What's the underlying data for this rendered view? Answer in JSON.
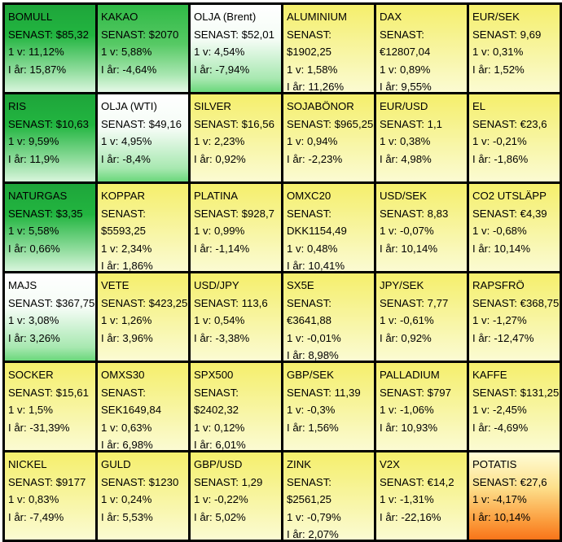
{
  "labels": {
    "senast": "SENAST:",
    "week": "1 v:",
    "year": "I år:"
  },
  "cells": [
    {
      "name": "BOMULL",
      "senast": "$85,32",
      "week": "11,12%",
      "year": "15,87%",
      "bg": "g1"
    },
    {
      "name": "KAKAO",
      "senast": "$2070",
      "week": "5,88%",
      "year": "-4,64%",
      "bg": "g2"
    },
    {
      "name": "OLJA (Brent)",
      "senast": "$52,01",
      "week": "4,54%",
      "year": "-7,94%",
      "bg": "g3"
    },
    {
      "name": "ALUMINIUM",
      "senast": "$1902,25",
      "week": "1,58%",
      "year": "11,26%",
      "bg": "y"
    },
    {
      "name": "DAX",
      "senast": "€12807,04",
      "week": "0,89%",
      "year": "9,55%",
      "bg": "y"
    },
    {
      "name": "EUR/SEK",
      "senast": "9,69",
      "week": "0,31%",
      "year": "1,52%",
      "bg": "y"
    },
    {
      "name": "RIS",
      "senast": "$10,63",
      "week": "9,59%",
      "year": "11,9%",
      "bg": "g1"
    },
    {
      "name": "OLJA (WTI)",
      "senast": "$49,16",
      "week": "4,95%",
      "year": "-8,4%",
      "bg": "g3"
    },
    {
      "name": "SILVER",
      "senast": "$16,56",
      "week": "2,23%",
      "year": "0,92%",
      "bg": "y"
    },
    {
      "name": "SOJABÖNOR",
      "senast": "$965,25",
      "week": "0,94%",
      "year": "-2,23%",
      "bg": "y"
    },
    {
      "name": "EUR/USD",
      "senast": "1,1",
      "week": "0,38%",
      "year": "4,98%",
      "bg": "y"
    },
    {
      "name": "EL",
      "senast": "€23,6",
      "week": "-0,21%",
      "year": "-1,86%",
      "bg": "y"
    },
    {
      "name": "NATURGAS",
      "senast": "$3,35",
      "week": "5,58%",
      "year": "0,66%",
      "bg": "g1"
    },
    {
      "name": "KOPPAR",
      "senast": "$5593,25",
      "week": "2,34%",
      "year": "1,86%",
      "bg": "y"
    },
    {
      "name": "PLATINA",
      "senast": "$928,7",
      "week": "0,99%",
      "year": "-1,14%",
      "bg": "y"
    },
    {
      "name": "OMXC20",
      "senast": "DKK1154,49",
      "week": "0,48%",
      "year": "10,41%",
      "bg": "y"
    },
    {
      "name": "USD/SEK",
      "senast": "8,83",
      "week": "-0,07%",
      "year": "10,14%",
      "bg": "y"
    },
    {
      "name": "CO2 UTSLÄPP",
      "senast": "€4,39",
      "week": "-0,68%",
      "year": "10,14%",
      "bg": "y"
    },
    {
      "name": "MAJS",
      "senast": "$367,75",
      "week": "3,08%",
      "year": "3,26%",
      "bg": "g3"
    },
    {
      "name": "VETE",
      "senast": "$423,25",
      "week": "1,26%",
      "year": "3,96%",
      "bg": "y"
    },
    {
      "name": "USD/JPY",
      "senast": "113,6",
      "week": "0,54%",
      "year": "-3,38%",
      "bg": "y"
    },
    {
      "name": "SX5E",
      "senast": "€3641,88",
      "week": "-0,01%",
      "year": "8,98%",
      "bg": "y"
    },
    {
      "name": "JPY/SEK",
      "senast": "7,77",
      "week": "-0,61%",
      "year": "0,92%",
      "bg": "y"
    },
    {
      "name": "RAPSFRÖ",
      "senast": "€368,75",
      "week": "-1,27%",
      "year": "-12,47%",
      "bg": "y"
    },
    {
      "name": "SOCKER",
      "senast": "$15,61",
      "week": "1,5%",
      "year": "-31,39%",
      "bg": "y"
    },
    {
      "name": "OMXS30",
      "senast": "SEK1649,84",
      "week": "0,63%",
      "year": "6,98%",
      "bg": "y"
    },
    {
      "name": "SPX500",
      "senast": "$2402,32",
      "week": "0,12%",
      "year": "6,01%",
      "bg": "y"
    },
    {
      "name": "GBP/SEK",
      "senast": "11,39",
      "week": "-0,3%",
      "year": "1,56%",
      "bg": "y"
    },
    {
      "name": "PALLADIUM",
      "senast": "$797",
      "week": "-1,06%",
      "year": "10,93%",
      "bg": "y"
    },
    {
      "name": "KAFFE",
      "senast": "$131,25",
      "week": "-2,45%",
      "year": "-4,69%",
      "bg": "y"
    },
    {
      "name": "NICKEL",
      "senast": "$9177",
      "week": "0,83%",
      "year": "-7,49%",
      "bg": "y"
    },
    {
      "name": "GULD",
      "senast": "$1230",
      "week": "0,24%",
      "year": "5,53%",
      "bg": "y"
    },
    {
      "name": "GBP/USD",
      "senast": "1,29",
      "week": "-0,22%",
      "year": "5,02%",
      "bg": "y"
    },
    {
      "name": "ZINK",
      "senast": "$2561,25",
      "week": "-0,79%",
      "year": "2,07%",
      "bg": "y"
    },
    {
      "name": "V2X",
      "senast": "€14,2",
      "week": "-1,31%",
      "year": "-22,16%",
      "bg": "y"
    },
    {
      "name": "POTATIS",
      "senast": "€27,6",
      "week": "-4,17%",
      "year": "10,14%",
      "bg": "o"
    }
  ]
}
